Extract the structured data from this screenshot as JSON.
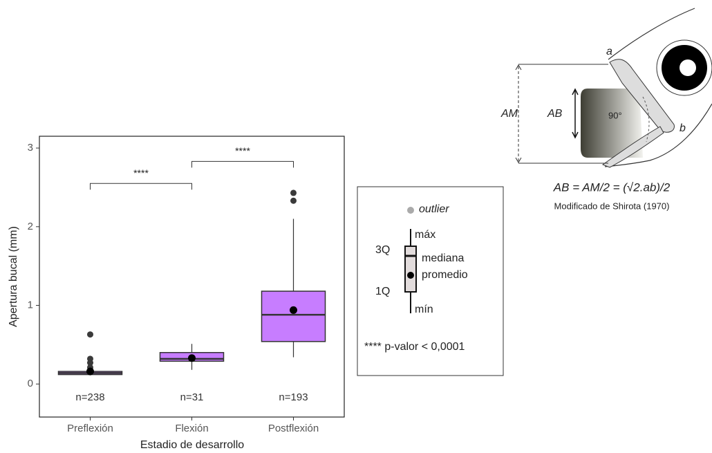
{
  "chart_data": {
    "type": "box",
    "x_label": "Estadio de desarrollo",
    "y_label": "Apertura bucal (mm)",
    "categories": [
      "Preflexión",
      "Flexión",
      "Postflexión"
    ],
    "n_labels": [
      "n=238",
      "n=31",
      "n=193"
    ],
    "box_color": "#c77dff",
    "boxes": [
      {
        "min": 0.11,
        "q1": 0.12,
        "median": 0.14,
        "q3": 0.16,
        "max": 0.19,
        "mean": 0.16,
        "outliers": [
          0.21,
          0.27,
          0.32,
          0.63
        ]
      },
      {
        "min": 0.18,
        "q1": 0.29,
        "median": 0.32,
        "q3": 0.4,
        "max": 0.51,
        "mean": 0.33,
        "outliers": []
      },
      {
        "min": 0.34,
        "q1": 0.54,
        "median": 0.88,
        "q3": 1.18,
        "max": 2.1,
        "mean": 0.94,
        "outliers": [
          2.33,
          2.43
        ]
      }
    ],
    "comparisons": [
      {
        "from": "Preflexión",
        "to": "Flexión",
        "y": 2.55,
        "label": "****"
      },
      {
        "from": "Flexión",
        "to": "Postflexión",
        "y": 2.83,
        "label": "****"
      }
    ],
    "ylim": [
      -0.42,
      3.15
    ],
    "yticks": [
      0,
      1,
      2,
      3
    ]
  },
  "key": {
    "outlier": "outlier",
    "max": "máx",
    "q3": "3Q",
    "median": "mediana",
    "mean": "promedio",
    "q1": "1Q",
    "min": "mín",
    "significance": "**** p-valor < 0,0001"
  },
  "diagram": {
    "a": "a",
    "b": "b",
    "am": "AM",
    "ab": "AB",
    "angle": "90°",
    "formula": "AB = AM/2 = (√2.ab)/2",
    "caption": "Modificado de Shirota (1970)"
  }
}
